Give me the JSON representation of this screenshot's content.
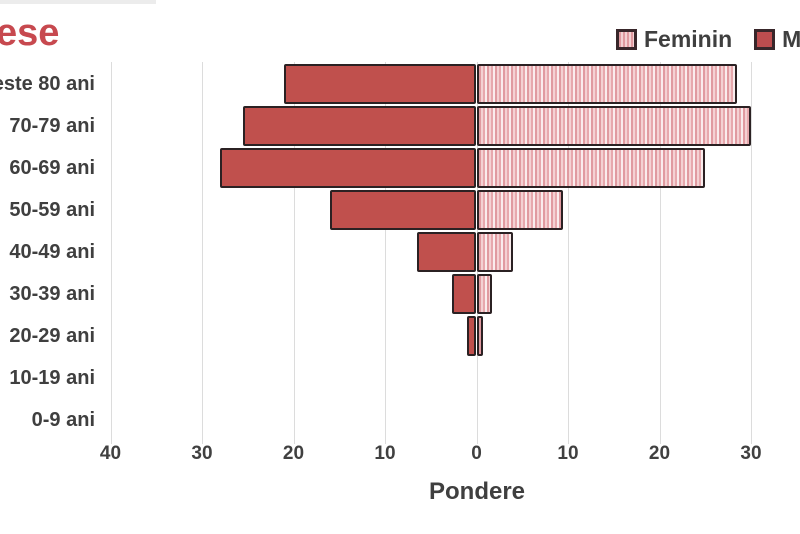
{
  "title": {
    "text": "ese"
  },
  "legend": {
    "items": [
      {
        "label": "Feminin",
        "swatch": "striped"
      },
      {
        "label": "Ma",
        "swatch": "solid"
      }
    ]
  },
  "chart_data": {
    "type": "bar",
    "subtype": "population_pyramid_horizontal",
    "title_fragment_visible": "ese",
    "categories": [
      "este 80 ani",
      "70-79 ani",
      "60-69 ani",
      "50-59 ani",
      "40-49 ani",
      "30-39 ani",
      "20-29 ani",
      "10-19 ani",
      "0-9 ani"
    ],
    "series": [
      {
        "name": "Masculin",
        "legend_label_visible": "Ma",
        "side": "left",
        "style": "solid",
        "values": [
          21,
          25.5,
          28,
          16,
          6.5,
          2.7,
          1,
          0,
          0
        ]
      },
      {
        "name": "Feminin",
        "legend_label_visible": "Feminin",
        "side": "right",
        "style": "striped",
        "values": [
          28.5,
          30,
          25,
          9.5,
          4,
          1.7,
          0.7,
          0,
          0
        ]
      }
    ],
    "xlabel": "Pondere",
    "x_tick_labels": [
      "40",
      "30",
      "20",
      "10",
      "0",
      "10",
      "20",
      "30"
    ],
    "x_tick_values": [
      -40,
      -30,
      -20,
      -10,
      0,
      10,
      20,
      30
    ],
    "xlim": [
      -44,
      35
    ],
    "grid": true,
    "legend_position": "top-right"
  },
  "colors": {
    "masculin_fill": "#c0504d",
    "feminin_stripe_dark": "#e09aa0",
    "feminin_stripe_light": "#f4d1d3",
    "bar_border": "#2b2123",
    "title": "#c7494f",
    "text": "#3f3f3f",
    "gridline": "#dcdcdc",
    "background": "#ffffff"
  }
}
